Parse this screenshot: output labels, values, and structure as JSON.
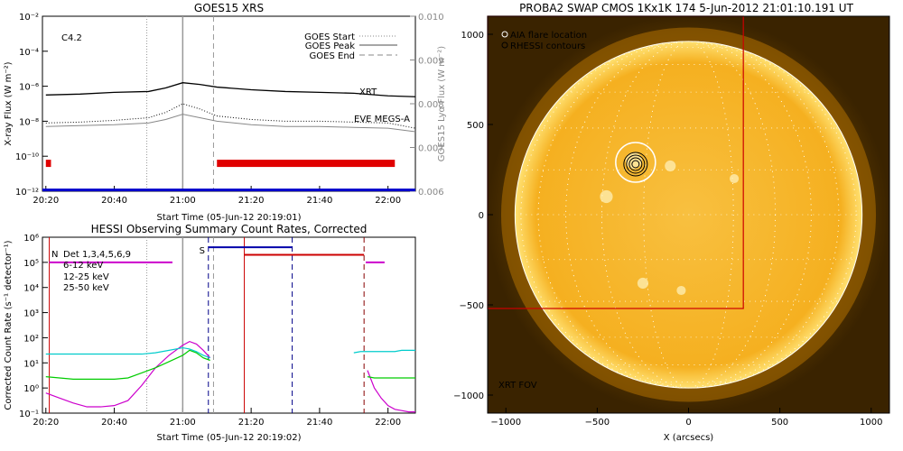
{
  "chart_data": [
    {
      "type": "line",
      "title": "GOES15 XRS",
      "xlabel": "Start Time (05-Jun-12 20:19:01)",
      "ylabel": "X-ray Flux (W m⁻²)",
      "y2label": "GOES15 Lyα Flux (W m⁻²)",
      "x_ticks": [
        "20:20",
        "20:40",
        "21:00",
        "21:20",
        "21:40",
        "22:00"
      ],
      "x_tick_minutes": [
        20,
        40,
        60,
        80,
        100,
        120
      ],
      "xlim_minutes": [
        19,
        128
      ],
      "ylim_log10": [
        -12,
        -2
      ],
      "y_ticks_log10": [
        -2,
        -4,
        -6,
        -8,
        -10,
        -12
      ],
      "y_tick_labels": [
        "10⁻²",
        "10⁻⁴",
        "10⁻⁶",
        "10⁻⁸",
        "10⁻¹⁰",
        "10⁻¹²"
      ],
      "y2_ticks": [
        "0.010",
        "0.009",
        "0.008",
        "0.007",
        "0.006"
      ],
      "y2_tick_values": [
        0.01,
        0.009,
        0.008,
        0.007,
        0.006
      ],
      "y2lim": [
        0.006,
        0.01
      ],
      "flare_class": "C4.2",
      "legend": [
        "GOES Start",
        "GOES Peak",
        "GOES End"
      ],
      "legend_placement": "top-right",
      "event_lines_minutes": {
        "start": 49.5,
        "peak": 60,
        "end": 69
      },
      "series": [
        {
          "name": "XRT",
          "color": "#cc0000",
          "x": [
            20,
            30,
            40,
            50,
            55,
            60,
            65,
            70,
            80,
            90,
            100,
            110,
            120,
            128
          ],
          "log10": [
            -6.5,
            -6.45,
            -6.35,
            -6.3,
            -6.1,
            -5.8,
            -5.9,
            -6.05,
            -6.2,
            -6.3,
            -6.35,
            -6.4,
            -6.55,
            -6.6
          ]
        },
        {
          "name": "",
          "color": "#000000",
          "style": "dotted",
          "x": [
            20,
            30,
            40,
            50,
            55,
            60,
            65,
            70,
            80,
            90,
            100,
            110,
            120,
            128
          ],
          "log10": [
            -8.1,
            -8.05,
            -7.95,
            -7.8,
            -7.5,
            -7.0,
            -7.3,
            -7.7,
            -7.9,
            -8.0,
            -8.0,
            -8.05,
            -8.1,
            -8.4
          ]
        },
        {
          "name": "EVE MEGS-A",
          "color": "#0000cc",
          "x": [
            20,
            30,
            40,
            50,
            55,
            60,
            65,
            70,
            80,
            90,
            100,
            110,
            120,
            128
          ],
          "log10": [
            -8.3,
            -8.25,
            -8.2,
            -8.1,
            -7.9,
            -7.6,
            -7.8,
            -8.0,
            -8.2,
            -8.3,
            -8.3,
            -8.35,
            -8.4,
            -8.6
          ]
        }
      ],
      "annotations": [
        "XRT",
        "EVE MEGS-A"
      ]
    },
    {
      "type": "line",
      "title": "HESSI Observing Summary Count Rates, Corrected",
      "xlabel": "Start Time (05-Jun-12 20:19:02)",
      "ylabel": "Corrected Count Rate (s⁻¹ detector⁻¹)",
      "x_ticks": [
        "20:20",
        "20:40",
        "21:00",
        "21:20",
        "21:40",
        "22:00"
      ],
      "x_tick_minutes": [
        20,
        40,
        60,
        80,
        100,
        120
      ],
      "xlim_minutes": [
        19,
        128
      ],
      "ylim_log10": [
        -1,
        6
      ],
      "y_ticks_log10": [
        6,
        5,
        4,
        3,
        2,
        1,
        0,
        -1
      ],
      "y_tick_labels": [
        "10⁶",
        "10⁵",
        "10⁴",
        "10³",
        "10²",
        "10¹",
        "10⁰",
        "10⁻¹"
      ],
      "legend": [
        "Det 1,3,4,5,6,9",
        "6-12 keV",
        "12-25 keV",
        "25-50 keV"
      ],
      "legend_colors": [
        "#000000",
        "#cc00cc",
        "#00cc00",
        "#00cccc"
      ],
      "legend_prefix": "N",
      "legend_placement": "top-left",
      "flag_labels": [
        "N",
        "S"
      ],
      "series": [
        {
          "name": "6-12 keV",
          "color": "#cc00cc",
          "x": [
            20,
            24,
            28,
            32,
            36,
            40,
            44,
            48,
            52,
            56,
            60,
            62,
            64,
            66,
            68
          ],
          "log10": [
            -0.2,
            -0.4,
            -0.6,
            -0.75,
            -0.75,
            -0.7,
            -0.5,
            0.1,
            0.8,
            1.3,
            1.7,
            1.85,
            1.75,
            1.5,
            1.2
          ]
        },
        {
          "name": "12-25 keV",
          "color": "#00cc00",
          "x": [
            20,
            24,
            28,
            32,
            36,
            40,
            44,
            48,
            52,
            56,
            60,
            62,
            64,
            66,
            68
          ],
          "log10": [
            0.45,
            0.4,
            0.35,
            0.35,
            0.35,
            0.35,
            0.4,
            0.6,
            0.8,
            1.05,
            1.3,
            1.5,
            1.4,
            1.2,
            1.1
          ]
        },
        {
          "name": "25-50 keV",
          "color": "#00cccc",
          "x": [
            20,
            24,
            28,
            32,
            36,
            40,
            44,
            48,
            52,
            56,
            60,
            62,
            64,
            66,
            68
          ],
          "log10": [
            1.35,
            1.35,
            1.35,
            1.35,
            1.35,
            1.35,
            1.35,
            1.35,
            1.4,
            1.5,
            1.6,
            1.55,
            1.45,
            1.3,
            1.2
          ]
        },
        {
          "name": "",
          "color": "#cc00cc",
          "x": [
            114,
            116,
            118,
            120,
            122,
            124,
            126,
            128
          ],
          "log10": [
            0.7,
            0.0,
            -0.4,
            -0.7,
            -0.85,
            -0.9,
            -0.95,
            -0.95
          ]
        },
        {
          "name": "",
          "color": "#00cc00",
          "x": [
            114,
            116,
            118,
            120,
            122,
            124,
            126,
            128
          ],
          "log10": [
            0.45,
            0.4,
            0.4,
            0.4,
            0.4,
            0.4,
            0.4,
            0.4
          ]
        },
        {
          "name": "",
          "color": "#00cccc",
          "x": [
            110,
            112,
            114,
            116,
            118,
            120,
            122,
            124,
            126,
            128
          ],
          "log10": [
            1.4,
            1.45,
            1.45,
            1.45,
            1.45,
            1.45,
            1.45,
            1.5,
            1.5,
            1.5
          ]
        }
      ]
    },
    {
      "type": "image",
      "title": "PROBA2 SWAP CMOS 1Kx1K 174  5-Jun-2012 21:01:10.191 UT",
      "xlabel": "X (arcsecs)",
      "ylabel": "",
      "x_ticks": [
        "−1000",
        "−500",
        "0",
        "500",
        "1000"
      ],
      "x_tick_values": [
        -1000,
        -500,
        0,
        500,
        1000
      ],
      "y_ticks": [
        "1000",
        "500",
        "0",
        "−500",
        "−1000"
      ],
      "y_tick_values": [
        1000,
        500,
        0,
        -500,
        -1000
      ],
      "xlim": [
        -1100,
        1100
      ],
      "ylim": [
        -1100,
        1100
      ],
      "legend": [
        "AIA flare location",
        "RHESSI contours"
      ],
      "legend_placement": "top-left",
      "fov_label": "XRT FOV",
      "fov_box_arcsec": {
        "x": [
          -1100,
          300
        ],
        "y": [
          -520,
          1100
        ]
      },
      "flare_location_arcsec": {
        "x": -290,
        "y": 290
      },
      "solar_radius_arcsec": 950
    }
  ],
  "colors": {
    "goes_black": "#000000",
    "goes_gray": "#888888",
    "xrt_red": "#cc0000",
    "eve_blue": "#0000cc",
    "sun_gold": "#f5b020",
    "sun_core": "#f8c040"
  }
}
